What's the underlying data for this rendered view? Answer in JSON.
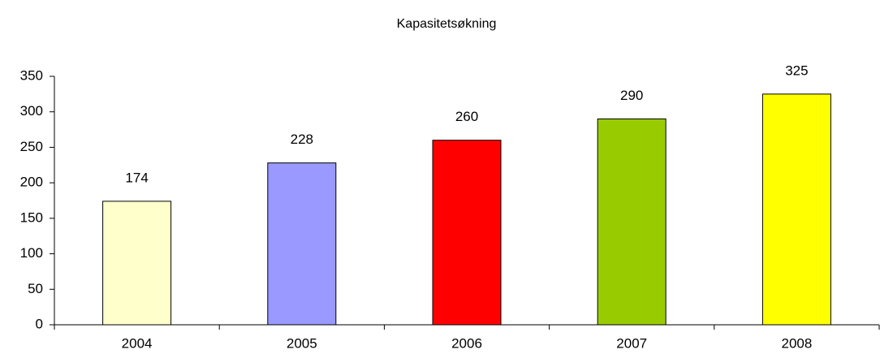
{
  "chart_data": {
    "type": "bar",
    "title": "Kapasitetsøkning",
    "categories": [
      "2004",
      "2005",
      "2006",
      "2007",
      "2008"
    ],
    "values": [
      174,
      228,
      260,
      290,
      325
    ],
    "colors": [
      "#ffffcc",
      "#9999ff",
      "#ff0000",
      "#99cc00",
      "#ffff00"
    ],
    "ylim": [
      0,
      350
    ],
    "yticks": [
      0,
      50,
      100,
      150,
      200,
      250,
      300,
      350
    ],
    "grid": false
  }
}
